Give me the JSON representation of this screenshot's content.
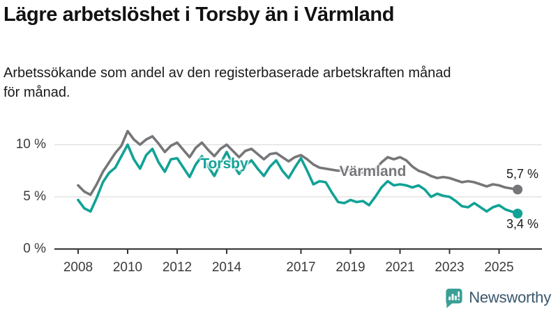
{
  "header": {
    "title": "Lägre arbetslöshet i Torsby än i Värmland",
    "subtitle": "Arbetssökande som andel av den registerbaserade arbetskraften månad för månad.",
    "subtitle_lines": [
      "Arbetssökande som andel av den registerbaserade arbetskraften månad",
      "för månad."
    ]
  },
  "chart_data": {
    "type": "line",
    "title": "Lägre arbetslöshet i Torsby än i Värmland",
    "xlabel": "",
    "ylabel": "",
    "x_start": 2008.0,
    "x_step": 0.25,
    "x_range": [
      2008.0,
      2025.75
    ],
    "ylim": [
      0,
      12
    ],
    "grid": "horizontal-gridlines-at-5-and-10",
    "legend_position": "inline-labels-on-lines",
    "y_ticks": [
      {
        "v": 0,
        "label": "0 %"
      },
      {
        "v": 5,
        "label": "5 %"
      },
      {
        "v": 10,
        "label": "10 %"
      }
    ],
    "x_ticks": [
      {
        "v": 2008,
        "label": "2008"
      },
      {
        "v": 2010,
        "label": "2010"
      },
      {
        "v": 2012,
        "label": "2012"
      },
      {
        "v": 2014,
        "label": "2014"
      },
      {
        "v": 2017,
        "label": "2017"
      },
      {
        "v": 2019,
        "label": "2019"
      },
      {
        "v": 2021,
        "label": "2021"
      },
      {
        "v": 2023,
        "label": "2023"
      },
      {
        "v": 2025,
        "label": "2025"
      }
    ],
    "series": [
      {
        "name": "Värmland",
        "color": "#767679",
        "end_label": "5,7 %",
        "end_label_position": "above",
        "inline_label": {
          "text": "Värmland",
          "x": 2019.9,
          "y": 7.35
        },
        "values": [
          6.1,
          5.5,
          5.2,
          6.2,
          7.4,
          8.3,
          9.2,
          9.9,
          11.3,
          10.5,
          10.0,
          10.5,
          10.8,
          10.1,
          9.3,
          9.9,
          10.2,
          9.5,
          8.8,
          9.7,
          10.2,
          9.5,
          8.9,
          9.6,
          10.0,
          9.4,
          8.8,
          9.4,
          9.6,
          9.1,
          8.6,
          9.1,
          9.2,
          8.8,
          8.4,
          8.8,
          9.0,
          8.6,
          8.1,
          7.8,
          7.7,
          7.6,
          7.5,
          7.6,
          7.5,
          7.4,
          7.3,
          7.4,
          7.6,
          8.3,
          8.8,
          8.6,
          8.8,
          8.5,
          7.9,
          7.5,
          7.3,
          7.0,
          6.8,
          6.9,
          6.8,
          6.6,
          6.4,
          6.5,
          6.4,
          6.2,
          6.0,
          6.2,
          6.1,
          5.9,
          5.8,
          5.7
        ]
      },
      {
        "name": "Torsby",
        "color": "#10a295",
        "end_label": "3,4 %",
        "end_label_position": "below",
        "inline_label": {
          "text": "Torsby",
          "x": 2013.9,
          "y": 8.1
        },
        "values": [
          4.7,
          3.9,
          3.6,
          4.9,
          6.4,
          7.3,
          7.8,
          8.9,
          10.0,
          8.6,
          7.7,
          9.0,
          9.6,
          8.3,
          7.4,
          8.6,
          8.7,
          7.8,
          6.9,
          8.1,
          8.9,
          7.9,
          7.0,
          8.2,
          9.3,
          8.1,
          7.2,
          8.0,
          8.5,
          7.7,
          7.0,
          7.9,
          8.5,
          7.5,
          6.8,
          7.8,
          8.7,
          7.5,
          6.2,
          6.5,
          6.4,
          5.4,
          4.5,
          4.4,
          4.7,
          4.5,
          4.6,
          4.2,
          5.0,
          5.9,
          6.5,
          6.1,
          6.2,
          6.1,
          5.9,
          6.1,
          5.7,
          5.0,
          5.3,
          5.1,
          5.0,
          4.6,
          4.1,
          4.0,
          4.4,
          4.0,
          3.6,
          4.0,
          4.2,
          3.8,
          3.6,
          3.4
        ]
      }
    ],
    "colors": {
      "axis": "#333333",
      "gridline": "#e2e2e2",
      "tick_label": "#3a3a3a"
    }
  },
  "footer": {
    "brand": "Newsworthy",
    "brand_icon_color": "#3aa096",
    "brand_text_color": "#39576b"
  }
}
